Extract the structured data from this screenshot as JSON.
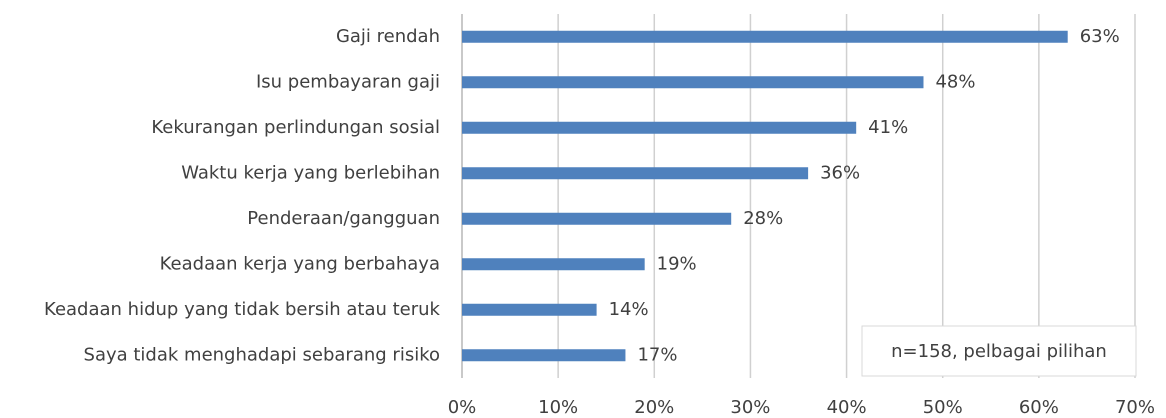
{
  "chart_data": {
    "type": "bar",
    "orientation": "horizontal",
    "categories": [
      "Gaji rendah",
      "Isu pembayaran gaji",
      "Kekurangan perlindungan sosial",
      "Waktu kerja yang berlebihan",
      "Penderaan/gangguan",
      "Keadaan kerja yang berbahaya",
      "Keadaan hidup yang tidak bersih atau teruk",
      "Saya tidak menghadapi sebarang risiko"
    ],
    "values": [
      63,
      48,
      41,
      36,
      28,
      19,
      14,
      17
    ],
    "value_labels": [
      "63%",
      "48%",
      "41%",
      "36%",
      "28%",
      "19%",
      "14%",
      "17%"
    ],
    "color": "#4f81bd",
    "xlim": [
      0,
      70
    ],
    "xticks": [
      {
        "value": 0,
        "label": "0%"
      },
      {
        "value": 10,
        "label": "10%"
      },
      {
        "value": 20,
        "label": "20%"
      },
      {
        "value": 30,
        "label": "30%"
      },
      {
        "value": 40,
        "label": "40%"
      },
      {
        "value": 50,
        "label": "50%"
      },
      {
        "value": 60,
        "label": "60%"
      },
      {
        "value": 70,
        "label": "70%"
      }
    ],
    "grid": true,
    "annotation": "n=158, pelbagai pilihan"
  }
}
